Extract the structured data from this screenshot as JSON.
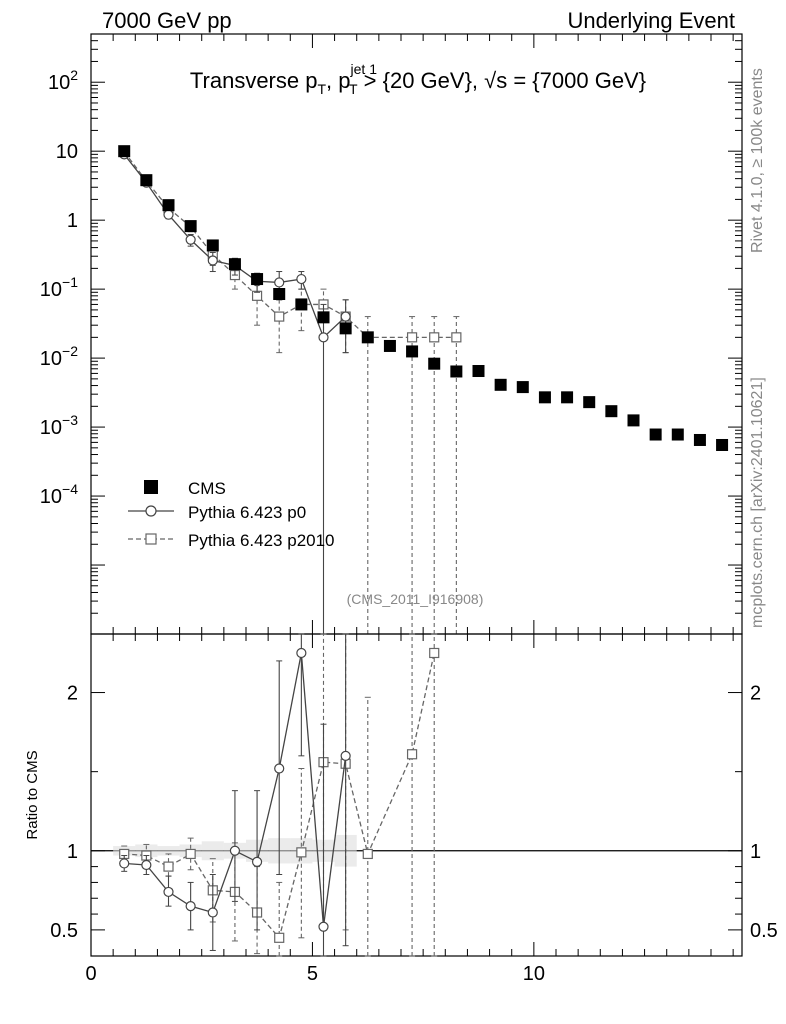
{
  "header": {
    "left": "7000 GeV pp",
    "right": "Underlying Event"
  },
  "title": {
    "prefix": "Transverse p",
    "sub_t1": "T",
    "sep": ", p",
    "sup_jet": "jet 1",
    "sub_t2": "T",
    "rest1": " > {20 GeV}, ",
    "sqrt_s": "√s",
    "rest2": " = {7000 GeV}"
  },
  "side_labels": {
    "rivet": "Rivet 4.1.0, ≥ 100k events",
    "mcplots": "mcplots.cern.ch [arXiv:2401.10621]"
  },
  "analysis_id": "(CMS_2011_I916908)",
  "ratio_ylabel": "Ratio to CMS",
  "legend": [
    {
      "label": "CMS",
      "style": "filled-square"
    },
    {
      "label": "Pythia 6.423 p0",
      "style": "open-circle-solid"
    },
    {
      "label": "Pythia 6.423 p2010",
      "style": "open-square-dashed"
    }
  ],
  "colors": {
    "cms": "#000000",
    "p0": "#444444",
    "p2010": "#666666",
    "side": "#888888"
  },
  "chart_data": [
    {
      "type": "scatter",
      "yscale": "log",
      "xlim": [
        0,
        14.7
      ],
      "ylim": [
        1e-06,
        500
      ],
      "ytick_labels": [
        {
          "v": 0.0001,
          "base": "10",
          "exp": "−4"
        },
        {
          "v": 0.001,
          "base": "10",
          "exp": "−3"
        },
        {
          "v": 0.01,
          "base": "10",
          "exp": "−2"
        },
        {
          "v": 0.1,
          "base": "10",
          "exp": "−1"
        },
        {
          "v": 1,
          "base": "1",
          "exp": ""
        },
        {
          "v": 10,
          "base": "10",
          "exp": ""
        },
        {
          "v": 100,
          "base": "10",
          "exp": "2"
        }
      ],
      "series": [
        {
          "name": "CMS",
          "x": [
            0.75,
            1.25,
            1.75,
            2.25,
            2.75,
            3.25,
            3.75,
            4.25,
            4.75,
            5.25,
            5.75,
            6.25,
            6.75,
            7.25,
            7.75,
            8.25,
            8.75,
            9.25,
            9.75,
            10.25,
            10.75,
            11.25,
            11.75,
            12.25,
            12.75,
            13.25,
            13.75,
            14.25
          ],
          "y": [
            10.0,
            3.8,
            1.65,
            0.82,
            0.43,
            0.23,
            0.14,
            0.085,
            0.06,
            0.039,
            0.027,
            0.02,
            0.015,
            0.0125,
            0.0083,
            0.0064,
            0.0065,
            0.0041,
            0.0038,
            0.0027,
            0.0027,
            0.0023,
            0.0017,
            0.00125,
            0.00078,
            0.00078,
            0.00065,
            0.00055
          ]
        },
        {
          "name": "Pythia 6.423 p0",
          "x": [
            0.75,
            1.25,
            1.75,
            2.25,
            2.75,
            3.25,
            3.75,
            4.25,
            4.75,
            5.25,
            5.75
          ],
          "y": [
            9.0,
            3.5,
            1.2,
            0.52,
            0.26,
            0.22,
            0.13,
            0.125,
            0.14,
            0.02,
            0.04
          ],
          "err": [
            [
              8.4,
              9.6
            ],
            [
              3.2,
              3.8
            ],
            [
              1.05,
              1.35
            ],
            [
              0.42,
              0.62
            ],
            [
              0.18,
              0.34
            ],
            [
              0.16,
              0.28
            ],
            [
              0.09,
              0.17
            ],
            [
              0.07,
              0.18
            ],
            [
              0.1,
              0.18
            ],
            [
              1e-07,
              0.06
            ],
            [
              0.012,
              0.07
            ]
          ]
        },
        {
          "name": "Pythia 6.423 p2010",
          "x": [
            0.75,
            1.25,
            1.75,
            2.25,
            2.75,
            3.25,
            3.75,
            4.25,
            4.75,
            5.25,
            5.75,
            6.25,
            7.25,
            7.75,
            8.25
          ],
          "y": [
            9.8,
            3.7,
            1.5,
            0.8,
            0.32,
            0.16,
            0.08,
            0.04,
            0.06,
            0.06,
            0.04,
            0.02,
            0.02,
            0.02,
            0.02
          ],
          "err": [
            [
              9.3,
              10.3
            ],
            [
              3.4,
              4.0
            ],
            [
              1.3,
              1.7
            ],
            [
              0.68,
              0.92
            ],
            [
              0.22,
              0.42
            ],
            [
              0.1,
              0.22
            ],
            [
              0.03,
              0.13
            ],
            [
              0.012,
              0.07
            ],
            [
              0.025,
              0.1
            ],
            [
              0.02,
              0.1
            ],
            [
              0.012,
              0.07
            ],
            [
              1e-07,
              0.04
            ],
            [
              1e-07,
              0.04
            ],
            [
              1e-07,
              0.04
            ],
            [
              1e-07,
              0.04
            ]
          ]
        }
      ]
    },
    {
      "type": "scatter",
      "xlim": [
        0,
        14.7
      ],
      "ylim": [
        0.335,
        2.37
      ],
      "xticks": [
        0,
        5,
        10
      ],
      "ytick_labels": [
        "0.5",
        "1",
        "2"
      ],
      "ytick_values": [
        0.5,
        1,
        2
      ],
      "reference_line": 1,
      "series": [
        {
          "name": "CMS",
          "band_x": [
            0.75,
            1.25,
            1.75,
            2.25,
            2.75,
            3.25,
            3.75,
            4.25,
            4.75,
            5.25,
            5.75
          ],
          "band": [
            [
              0.97,
              1.03
            ],
            [
              0.96,
              1.04
            ],
            [
              0.97,
              1.03
            ],
            [
              0.96,
              1.04
            ],
            [
              0.94,
              1.06
            ],
            [
              0.95,
              1.05
            ],
            [
              0.93,
              1.07
            ],
            [
              0.92,
              1.08
            ],
            [
              0.92,
              1.08
            ],
            [
              0.93,
              1.07
            ],
            [
              0.9,
              1.1
            ]
          ]
        },
        {
          "name": "Pythia 6.423 p0",
          "x": [
            0.75,
            1.25,
            1.75,
            2.25,
            2.75,
            3.25,
            3.75,
            4.25,
            4.75,
            5.25,
            5.75
          ],
          "y": [
            0.92,
            0.91,
            0.74,
            0.65,
            0.61,
            1.0,
            0.93,
            1.52,
            2.25,
            0.52,
            1.6
          ],
          "err": [
            [
              0.87,
              0.97
            ],
            [
              0.85,
              0.97
            ],
            [
              0.65,
              0.84
            ],
            [
              0.5,
              0.8
            ],
            [
              0.37,
              0.85
            ],
            [
              0.68,
              1.38
            ],
            [
              0.5,
              1.38
            ],
            [
              0.85,
              2.2
            ],
            [
              1.6,
              2.9
            ],
            [
              0.0001,
              1.8
            ],
            [
              0.4,
              2.6
            ]
          ]
        },
        {
          "name": "Pythia 6.423 p2010",
          "x": [
            0.75,
            1.25,
            1.75,
            2.25,
            2.75,
            3.25,
            3.75,
            4.25,
            4.75,
            5.25,
            5.75,
            6.25,
            7.25,
            7.75
          ],
          "y": [
            0.98,
            0.97,
            0.9,
            0.98,
            0.75,
            0.74,
            0.61,
            0.45,
            0.99,
            1.56,
            1.55,
            0.98,
            1.61,
            2.25
          ],
          "err": [
            [
              0.94,
              1.03
            ],
            [
              0.92,
              1.04
            ],
            [
              0.84,
              0.98
            ],
            [
              0.88,
              1.08
            ],
            [
              0.55,
              0.95
            ],
            [
              0.43,
              1.05
            ],
            [
              0.35,
              0.9
            ],
            [
              0.1,
              0.8
            ],
            [
              0.45,
              1.52
            ],
            [
              0.5,
              3.0
            ],
            [
              0.5,
              3.0
            ],
            [
              0.0001,
              1.97
            ],
            [
              0.0001,
              3.0
            ],
            [
              0.0001,
              3.0
            ]
          ]
        }
      ]
    }
  ]
}
